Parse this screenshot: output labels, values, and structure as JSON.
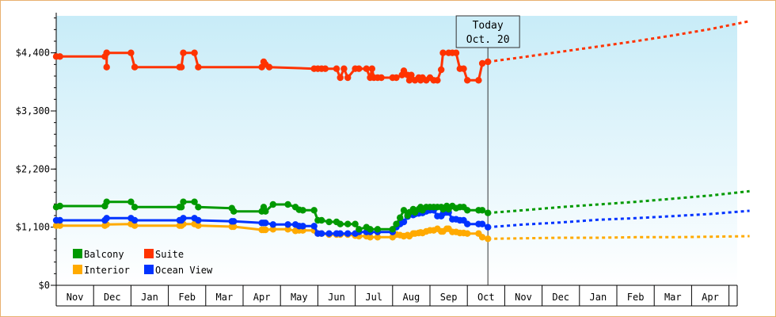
{
  "chart_data": {
    "type": "line",
    "title": "",
    "xlabel": "",
    "ylabel": "",
    "x_tick_labels": [
      "Nov",
      "Dec",
      "Jan",
      "Feb",
      "Mar",
      "Apr",
      "May",
      "Jun",
      "Jul",
      "Aug",
      "Sep",
      "Oct",
      "Nov",
      "Dec",
      "Jan",
      "Feb",
      "Mar",
      "Apr"
    ],
    "y_ticks": [
      {
        "value": 0,
        "label": "$0"
      },
      {
        "value": 1100,
        "label": "$1,100"
      },
      {
        "value": 2200,
        "label": "$2,200"
      },
      {
        "value": 3300,
        "label": "$3,300"
      },
      {
        "value": 4400,
        "label": "$4,400"
      }
    ],
    "ylim": [
      0,
      5100
    ],
    "xlim": [
      0,
      18.55
    ],
    "today": {
      "line1": "Today",
      "line2": "Oct. 20",
      "x": 11.55
    },
    "legend": {
      "placement": "bottom-left"
    },
    "background": {
      "top": "#c8ecf8",
      "bottom": "#ffffff"
    },
    "series": [
      {
        "name": "Suite",
        "color": "#ff3300",
        "points": [
          [
            0.0,
            4330
          ],
          [
            0.1,
            4330
          ],
          [
            1.3,
            4330
          ],
          [
            1.35,
            4400
          ],
          [
            1.35,
            4130
          ],
          [
            1.35,
            4400
          ],
          [
            2.0,
            4400
          ],
          [
            2.1,
            4130
          ],
          [
            3.3,
            4130
          ],
          [
            3.35,
            4130
          ],
          [
            3.4,
            4400
          ],
          [
            3.7,
            4400
          ],
          [
            3.8,
            4130
          ],
          [
            5.5,
            4130
          ],
          [
            5.55,
            4230
          ],
          [
            5.6,
            4180
          ],
          [
            5.7,
            4130
          ],
          [
            6.9,
            4100
          ],
          [
            7.0,
            4100
          ],
          [
            7.1,
            4100
          ],
          [
            7.2,
            4100
          ],
          [
            7.5,
            4100
          ],
          [
            7.6,
            3930
          ],
          [
            7.7,
            4100
          ],
          [
            7.8,
            3930
          ],
          [
            8.0,
            4100
          ],
          [
            8.1,
            4100
          ],
          [
            8.3,
            4100
          ],
          [
            8.4,
            3930
          ],
          [
            8.45,
            4100
          ],
          [
            8.5,
            3930
          ],
          [
            8.6,
            3930
          ],
          [
            8.7,
            3930
          ],
          [
            9.0,
            3930
          ],
          [
            9.1,
            3930
          ],
          [
            9.25,
            3980
          ],
          [
            9.3,
            4060
          ],
          [
            9.4,
            3980
          ],
          [
            9.45,
            3880
          ],
          [
            9.5,
            3980
          ],
          [
            9.6,
            3880
          ],
          [
            9.7,
            3930
          ],
          [
            9.75,
            3880
          ],
          [
            9.8,
            3930
          ],
          [
            9.9,
            3880
          ],
          [
            10.0,
            3930
          ],
          [
            10.1,
            3880
          ],
          [
            10.2,
            3880
          ],
          [
            10.3,
            4080
          ],
          [
            10.35,
            4400
          ],
          [
            10.5,
            4400
          ],
          [
            10.6,
            4400
          ],
          [
            10.7,
            4400
          ],
          [
            10.8,
            4100
          ],
          [
            10.9,
            4100
          ],
          [
            11.0,
            3880
          ],
          [
            11.3,
            3880
          ],
          [
            11.4,
            4200
          ],
          [
            11.55,
            4230
          ]
        ],
        "forecast": [
          [
            11.55,
            4230
          ],
          [
            12.5,
            4320
          ],
          [
            13.5,
            4420
          ],
          [
            14.5,
            4520
          ],
          [
            15.5,
            4620
          ],
          [
            16.5,
            4730
          ],
          [
            17.5,
            4850
          ],
          [
            18.55,
            5000
          ]
        ]
      },
      {
        "name": "Balcony",
        "color": "#009900",
        "points": [
          [
            0.0,
            1480
          ],
          [
            0.1,
            1500
          ],
          [
            1.3,
            1500
          ],
          [
            1.35,
            1580
          ],
          [
            2.0,
            1580
          ],
          [
            2.1,
            1480
          ],
          [
            3.3,
            1480
          ],
          [
            3.35,
            1480
          ],
          [
            3.4,
            1580
          ],
          [
            3.7,
            1580
          ],
          [
            3.8,
            1480
          ],
          [
            4.7,
            1460
          ],
          [
            4.75,
            1400
          ],
          [
            5.5,
            1400
          ],
          [
            5.55,
            1480
          ],
          [
            5.6,
            1400
          ],
          [
            5.8,
            1530
          ],
          [
            6.2,
            1530
          ],
          [
            6.4,
            1480
          ],
          [
            6.5,
            1430
          ],
          [
            6.6,
            1420
          ],
          [
            6.9,
            1420
          ],
          [
            7.0,
            1230
          ],
          [
            7.1,
            1230
          ],
          [
            7.3,
            1200
          ],
          [
            7.5,
            1200
          ],
          [
            7.6,
            1160
          ],
          [
            7.8,
            1160
          ],
          [
            8.0,
            1160
          ],
          [
            8.1,
            1060
          ],
          [
            8.3,
            1100
          ],
          [
            8.4,
            1060
          ],
          [
            8.6,
            1060
          ],
          [
            9.0,
            1060
          ],
          [
            9.1,
            1160
          ],
          [
            9.2,
            1280
          ],
          [
            9.3,
            1420
          ],
          [
            9.4,
            1320
          ],
          [
            9.45,
            1380
          ],
          [
            9.55,
            1440
          ],
          [
            9.6,
            1380
          ],
          [
            9.7,
            1440
          ],
          [
            9.75,
            1480
          ],
          [
            9.8,
            1420
          ],
          [
            9.9,
            1480
          ],
          [
            10.0,
            1480
          ],
          [
            10.1,
            1480
          ],
          [
            10.2,
            1480
          ],
          [
            10.3,
            1480
          ],
          [
            10.35,
            1440
          ],
          [
            10.45,
            1500
          ],
          [
            10.5,
            1440
          ],
          [
            10.6,
            1500
          ],
          [
            10.7,
            1460
          ],
          [
            10.8,
            1480
          ],
          [
            10.9,
            1480
          ],
          [
            11.0,
            1420
          ],
          [
            11.3,
            1420
          ],
          [
            11.4,
            1420
          ],
          [
            11.55,
            1370
          ]
        ],
        "forecast": [
          [
            11.55,
            1370
          ],
          [
            12.5,
            1420
          ],
          [
            13.5,
            1480
          ],
          [
            14.5,
            1530
          ],
          [
            15.5,
            1580
          ],
          [
            16.5,
            1640
          ],
          [
            17.5,
            1700
          ],
          [
            18.55,
            1780
          ]
        ]
      },
      {
        "name": "Ocean View",
        "color": "#0033ff",
        "points": [
          [
            0.0,
            1230
          ],
          [
            0.1,
            1230
          ],
          [
            1.3,
            1230
          ],
          [
            1.35,
            1270
          ],
          [
            2.0,
            1270
          ],
          [
            2.1,
            1230
          ],
          [
            3.3,
            1230
          ],
          [
            3.35,
            1230
          ],
          [
            3.4,
            1270
          ],
          [
            3.7,
            1270
          ],
          [
            3.8,
            1230
          ],
          [
            4.7,
            1210
          ],
          [
            4.75,
            1210
          ],
          [
            5.5,
            1180
          ],
          [
            5.55,
            1180
          ],
          [
            5.6,
            1180
          ],
          [
            5.8,
            1150
          ],
          [
            6.2,
            1150
          ],
          [
            6.4,
            1150
          ],
          [
            6.5,
            1120
          ],
          [
            6.6,
            1120
          ],
          [
            6.9,
            1120
          ],
          [
            7.0,
            980
          ],
          [
            7.1,
            980
          ],
          [
            7.3,
            980
          ],
          [
            7.5,
            980
          ],
          [
            7.6,
            980
          ],
          [
            7.8,
            980
          ],
          [
            8.0,
            980
          ],
          [
            8.1,
            1010
          ],
          [
            8.3,
            1010
          ],
          [
            8.4,
            1010
          ],
          [
            8.6,
            1010
          ],
          [
            9.0,
            1010
          ],
          [
            9.1,
            1100
          ],
          [
            9.2,
            1160
          ],
          [
            9.3,
            1200
          ],
          [
            9.4,
            1300
          ],
          [
            9.45,
            1340
          ],
          [
            9.55,
            1330
          ],
          [
            9.6,
            1350
          ],
          [
            9.7,
            1360
          ],
          [
            9.75,
            1380
          ],
          [
            9.8,
            1370
          ],
          [
            9.9,
            1400
          ],
          [
            10.0,
            1420
          ],
          [
            10.1,
            1420
          ],
          [
            10.2,
            1310
          ],
          [
            10.3,
            1310
          ],
          [
            10.35,
            1360
          ],
          [
            10.45,
            1380
          ],
          [
            10.5,
            1380
          ],
          [
            10.6,
            1250
          ],
          [
            10.7,
            1250
          ],
          [
            10.8,
            1230
          ],
          [
            10.9,
            1230
          ],
          [
            11.0,
            1160
          ],
          [
            11.3,
            1160
          ],
          [
            11.4,
            1160
          ],
          [
            11.55,
            1100
          ]
        ],
        "forecast": [
          [
            11.55,
            1100
          ],
          [
            12.5,
            1150
          ],
          [
            13.5,
            1190
          ],
          [
            14.5,
            1240
          ],
          [
            15.5,
            1270
          ],
          [
            16.5,
            1310
          ],
          [
            17.5,
            1350
          ],
          [
            18.55,
            1410
          ]
        ]
      },
      {
        "name": "Interior",
        "color": "#ffaa00",
        "points": [
          [
            0.0,
            1130
          ],
          [
            0.1,
            1130
          ],
          [
            1.3,
            1130
          ],
          [
            1.35,
            1150
          ],
          [
            2.0,
            1160
          ],
          [
            2.1,
            1130
          ],
          [
            3.3,
            1130
          ],
          [
            3.35,
            1130
          ],
          [
            3.4,
            1160
          ],
          [
            3.7,
            1160
          ],
          [
            3.8,
            1130
          ],
          [
            4.7,
            1110
          ],
          [
            4.75,
            1110
          ],
          [
            5.5,
            1050
          ],
          [
            5.55,
            1050
          ],
          [
            5.6,
            1050
          ],
          [
            5.8,
            1060
          ],
          [
            6.2,
            1060
          ],
          [
            6.4,
            1030
          ],
          [
            6.5,
            1040
          ],
          [
            6.6,
            1040
          ],
          [
            6.9,
            1040
          ],
          [
            7.0,
            980
          ],
          [
            7.1,
            980
          ],
          [
            7.3,
            960
          ],
          [
            7.5,
            960
          ],
          [
            7.6,
            960
          ],
          [
            7.8,
            960
          ],
          [
            8.0,
            940
          ],
          [
            8.1,
            930
          ],
          [
            8.3,
            930
          ],
          [
            8.4,
            910
          ],
          [
            8.6,
            910
          ],
          [
            9.0,
            910
          ],
          [
            9.1,
            960
          ],
          [
            9.2,
            950
          ],
          [
            9.3,
            930
          ],
          [
            9.4,
            950
          ],
          [
            9.45,
            930
          ],
          [
            9.55,
            980
          ],
          [
            9.6,
            980
          ],
          [
            9.7,
            990
          ],
          [
            9.75,
            1000
          ],
          [
            9.8,
            990
          ],
          [
            9.9,
            1020
          ],
          [
            10.0,
            1040
          ],
          [
            10.1,
            1040
          ],
          [
            10.2,
            1070
          ],
          [
            10.3,
            1020
          ],
          [
            10.35,
            1020
          ],
          [
            10.45,
            1070
          ],
          [
            10.5,
            1070
          ],
          [
            10.6,
            1010
          ],
          [
            10.7,
            1010
          ],
          [
            10.8,
            990
          ],
          [
            10.9,
            990
          ],
          [
            11.0,
            980
          ],
          [
            11.3,
            980
          ],
          [
            11.4,
            910
          ],
          [
            11.55,
            880
          ]
        ],
        "forecast": [
          [
            11.55,
            880
          ],
          [
            12.5,
            890
          ],
          [
            13.5,
            900
          ],
          [
            14.5,
            900
          ],
          [
            15.5,
            910
          ],
          [
            16.5,
            910
          ],
          [
            17.5,
            920
          ],
          [
            18.55,
            930
          ]
        ]
      }
    ]
  }
}
